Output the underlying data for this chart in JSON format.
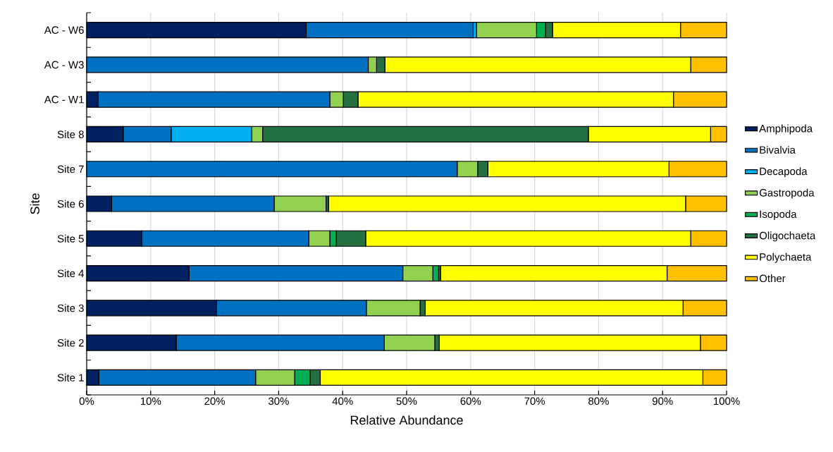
{
  "chart_data": {
    "type": "bar",
    "orientation": "horizontal",
    "stacked": true,
    "xlabel": "Relative Abundance",
    "ylabel": "Site",
    "categories": [
      "AC - W6",
      "AC - W3",
      "AC - W1",
      "Site 8",
      "Site 7",
      "Site 6",
      "Site 5",
      "Site 4",
      "Site 3",
      "Site 2",
      "Site 1"
    ],
    "series": [
      {
        "name": "Amphipoda",
        "color": "#002060",
        "values": [
          34.3,
          null,
          1.8,
          5.7,
          null,
          3.9,
          8.6,
          16.0,
          20.3,
          14.0,
          1.9
        ]
      },
      {
        "name": "Bivalvia",
        "color": "#0070c0",
        "values": [
          26.1,
          44.0,
          36.2,
          7.5,
          57.9,
          25.4,
          26.1,
          33.4,
          23.4,
          32.5,
          24.5
        ]
      },
      {
        "name": "Decapoda",
        "color": "#00b0f0",
        "values": [
          0.5,
          null,
          null,
          12.6,
          null,
          null,
          null,
          null,
          null,
          null,
          null
        ]
      },
      {
        "name": "Gastropoda",
        "color": "#92d050",
        "values": [
          9.4,
          1.3,
          2.1,
          1.7,
          3.2,
          8.1,
          3.3,
          4.7,
          8.4,
          7.9,
          6.1
        ]
      },
      {
        "name": "Isopoda",
        "color": "#00b050",
        "values": [
          1.4,
          null,
          null,
          null,
          null,
          null,
          1.0,
          0.9,
          null,
          null,
          2.4
        ]
      },
      {
        "name": "Oligochaeta",
        "color": "#247040",
        "values": [
          1.1,
          1.3,
          2.3,
          50.9,
          1.6,
          0.4,
          4.6,
          0.3,
          0.8,
          0.7,
          1.6
        ]
      },
      {
        "name": "Polychaeta",
        "color": "#ffff00",
        "values": [
          20.0,
          47.8,
          49.3,
          19.1,
          28.3,
          55.8,
          50.8,
          35.4,
          40.3,
          40.8,
          59.8
        ]
      },
      {
        "name": "Other",
        "color": "#ffc000",
        "values": [
          7.2,
          5.6,
          8.3,
          2.5,
          9.0,
          6.4,
          5.6,
          9.3,
          6.8,
          4.1,
          3.7
        ]
      }
    ],
    "xlim": [
      0,
      100
    ],
    "xticks": [
      {
        "value": 0,
        "label": "0%"
      },
      {
        "value": 10,
        "label": "10%"
      },
      {
        "value": 20,
        "label": "20%"
      },
      {
        "value": 30,
        "label": "30%"
      },
      {
        "value": 40,
        "label": "40%"
      },
      {
        "value": 50,
        "label": "50%"
      },
      {
        "value": 60,
        "label": "60%"
      },
      {
        "value": 70,
        "label": "70%"
      },
      {
        "value": 80,
        "label": "80%"
      },
      {
        "value": 90,
        "label": "90%"
      },
      {
        "value": 100,
        "label": "100%"
      }
    ],
    "grid": "x",
    "legend": "right"
  }
}
